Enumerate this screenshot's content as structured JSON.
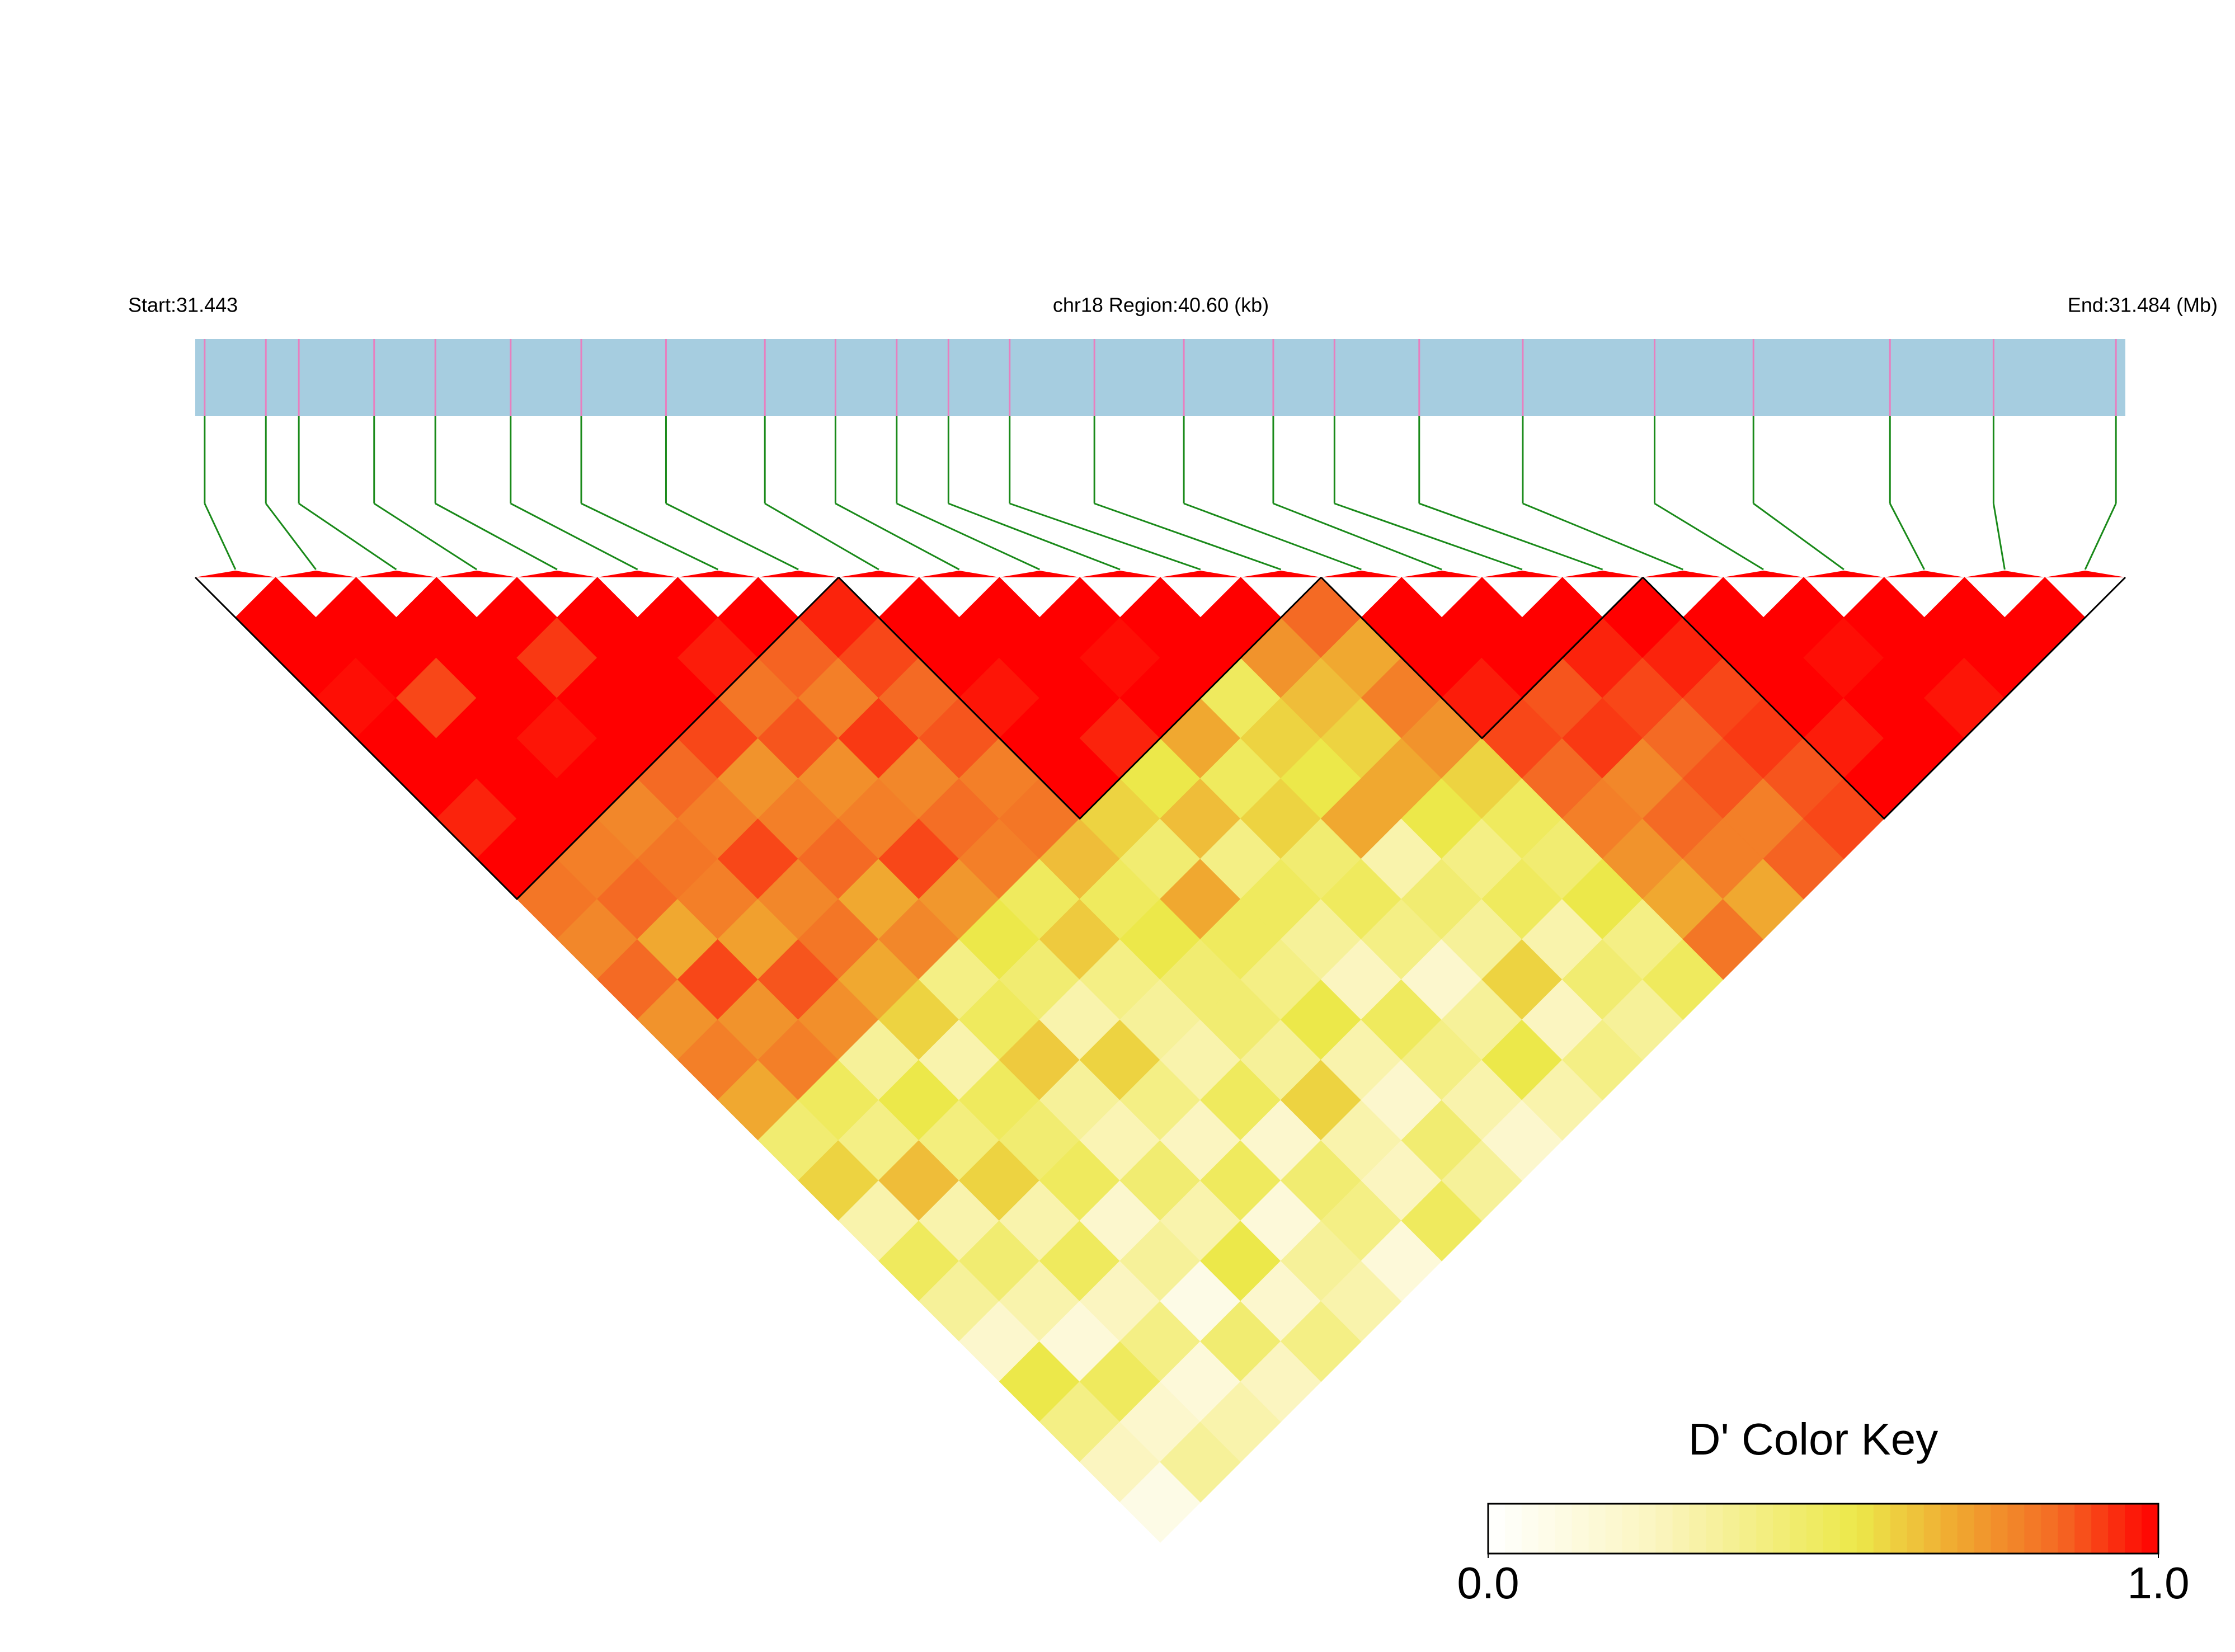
{
  "chart_data": {
    "type": "ld_heatmap",
    "start_label": "Start:31.443",
    "region_label": "chr18 Region:40.60 (kb)",
    "end_label": "End:31.484 (Mb)",
    "xlim": [
      31.443,
      31.484
    ],
    "bar_color": "#a6cde0",
    "snp_line_color": "#e87fbf",
    "connector_color": "#1a8a1a",
    "snp_positions": [
      31.4432,
      31.4445,
      31.4452,
      31.4468,
      31.4481,
      31.4497,
      31.4512,
      31.453,
      31.4551,
      31.4566,
      31.4579,
      31.459,
      31.4603,
      31.4621,
      31.464,
      31.4659,
      31.4672,
      31.469,
      31.4712,
      31.474,
      31.4761,
      31.479,
      31.4812,
      31.4838
    ],
    "dprime": [
      [
        1,
        1,
        0.98,
        1,
        1,
        0.95,
        1,
        0.82,
        0.78,
        0.85,
        0.75,
        0.8,
        0.7,
        0.45,
        0.6,
        0.3,
        0.5,
        0.35,
        0.2,
        0.55,
        0.4,
        0.25,
        0.1
      ],
      [
        1,
        1,
        0.9,
        1,
        1,
        1,
        0.8,
        0.85,
        0.7,
        0.9,
        0.75,
        0.8,
        0.5,
        0.4,
        0.65,
        0.3,
        0.45,
        0.3,
        0.15,
        0.5,
        0.2,
        0.35
      ],
      [
        1,
        1,
        1,
        0.97,
        1,
        0.78,
        0.82,
        0.8,
        0.72,
        0.88,
        0.76,
        0.35,
        0.55,
        0.42,
        0.6,
        0.3,
        0.5,
        0.25,
        0.4,
        0.15,
        0.3
      ],
      [
        1,
        0.92,
        1,
        1,
        0.85,
        0.8,
        0.9,
        0.78,
        0.82,
        0.7,
        0.6,
        0.3,
        0.5,
        0.45,
        0.5,
        0.2,
        0.35,
        0.1,
        0.45,
        0.25
      ],
      [
        1,
        1,
        1,
        0.9,
        0.75,
        0.8,
        0.85,
        0.7,
        0.78,
        0.4,
        0.5,
        0.62,
        0.35,
        0.28,
        0.45,
        0.3,
        0.55,
        0.2,
        0.4
      ],
      [
        1,
        0.96,
        0.82,
        0.88,
        0.76,
        0.8,
        0.9,
        0.74,
        0.55,
        0.45,
        0.3,
        0.6,
        0.4,
        0.25,
        0.5,
        0.15,
        0.35,
        0.3
      ],
      [
        1,
        0.86,
        0.8,
        0.92,
        0.78,
        0.84,
        0.8,
        0.5,
        0.62,
        0.4,
        0.35,
        0.3,
        0.5,
        0.2,
        0.45,
        0.4,
        0.15
      ],
      [
        0.95,
        0.9,
        0.85,
        0.88,
        0.8,
        0.82,
        0.65,
        0.5,
        0.55,
        0.45,
        0.45,
        0.35,
        0.6,
        0.3,
        0.25,
        0.5
      ],
      [
        1,
        1,
        0.97,
        1,
        1,
        0.6,
        0.45,
        0.7,
        0.5,
        0.4,
        0.55,
        0.3,
        0.2,
        0.45,
        0.35
      ],
      [
        1,
        1,
        1,
        0.95,
        0.55,
        0.65,
        0.4,
        0.5,
        0.35,
        0.25,
        0.5,
        0.4,
        0.3,
        0.2
      ],
      [
        1,
        0.98,
        1,
        0.7,
        0.5,
        0.6,
        0.45,
        0.5,
        0.4,
        0.2,
        0.35,
        0.55,
        0.3
      ],
      [
        1,
        1,
        0.5,
        0.6,
        0.55,
        0.7,
        0.3,
        0.45,
        0.35,
        0.6,
        0.25,
        0.4
      ],
      [
        1,
        0.75,
        0.65,
        0.6,
        0.7,
        0.55,
        0.4,
        0.5,
        0.3,
        0.45,
        0.35
      ],
      [
        0.85,
        0.7,
        0.8,
        0.75,
        0.6,
        0.5,
        0.45,
        0.55,
        0.4,
        0.5
      ],
      [
        1,
        1,
        0.96,
        0.9,
        0.85,
        0.8,
        0.75,
        0.7,
        0.82
      ],
      [
        1,
        1,
        0.88,
        0.92,
        0.78,
        0.85,
        0.8,
        0.7
      ],
      [
        1,
        0.95,
        0.9,
        0.85,
        0.88,
        0.8,
        0.86
      ],
      [
        1,
        0.95,
        0.9,
        0.92,
        0.88,
        0.9
      ],
      [
        1,
        1,
        1,
        0.96,
        1
      ],
      [
        1,
        0.98,
        1,
        1
      ],
      [
        1,
        1,
        0.97
      ],
      [
        1,
        1
      ],
      [
        1
      ]
    ],
    "blocks": [
      [
        0,
        7
      ],
      [
        8,
        13
      ],
      [
        14,
        17
      ],
      [
        18,
        23
      ]
    ],
    "color_key": {
      "title": "D' Color Key",
      "ticks": [
        {
          "value": 0,
          "label": "0.0"
        },
        {
          "value": 1,
          "label": "1.0"
        }
      ],
      "color_stops": [
        [
          0,
          "#ffffff"
        ],
        [
          0.25,
          "#fbf5c0"
        ],
        [
          0.55,
          "#ece84a"
        ],
        [
          0.7,
          "#f0a830"
        ],
        [
          0.85,
          "#f46a24"
        ],
        [
          1,
          "#ff0000"
        ]
      ]
    }
  }
}
